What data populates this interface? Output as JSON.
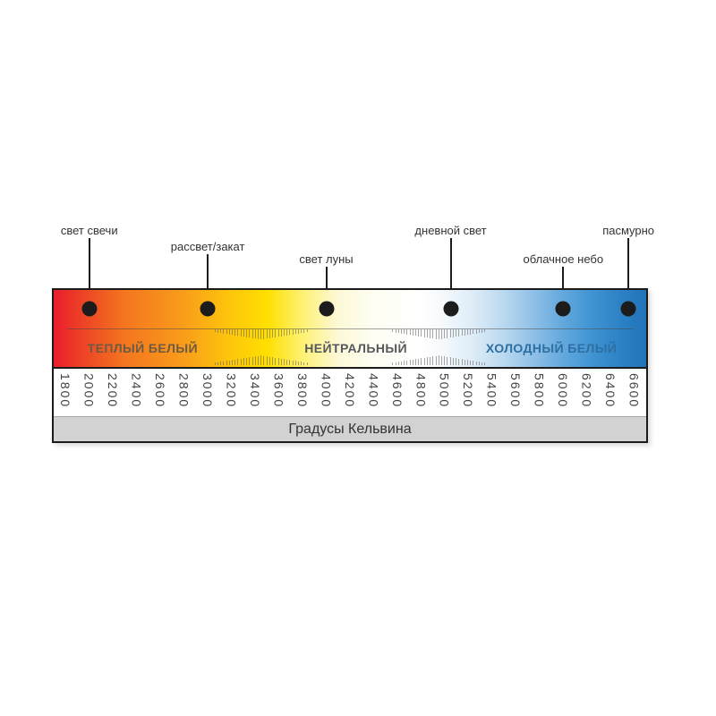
{
  "page": {
    "background": "#ffffff"
  },
  "chart_data": {
    "type": "scale",
    "title": "",
    "axis": {
      "label": "Градусы Кельвина",
      "unit": "K",
      "min": 1800,
      "max": 6600,
      "step": 200,
      "ticks": [
        "1800",
        "2000",
        "2200",
        "2400",
        "2600",
        "2800",
        "3000",
        "3200",
        "3400",
        "3600",
        "3800",
        "4000",
        "4200",
        "4400",
        "4600",
        "4800",
        "5000",
        "5200",
        "5400",
        "5600",
        "5800",
        "6000",
        "6200",
        "6400",
        "6600"
      ]
    },
    "zones": [
      {
        "label": "ТЕПЛЫЙ БЕЛЫЙ",
        "range_kelvin": [
          1800,
          3400
        ],
        "label_center_kelvin": 2450,
        "label_color": "#6e5a43"
      },
      {
        "label": "НЕЙТРАЛЬНЫЙ",
        "range_kelvin": [
          3400,
          5000
        ],
        "label_center_kelvin": 4250,
        "label_color": "#55585c"
      },
      {
        "label": "ХОЛОДНЫЙ БЕЛЫЙ",
        "range_kelvin": [
          5000,
          6600
        ],
        "label_center_kelvin": 5900,
        "label_color": "#2d6fa3"
      }
    ],
    "markers": [
      {
        "label": "свет свечи",
        "kelvin": 2000,
        "label_level": "high"
      },
      {
        "label": "рассвет/закат",
        "kelvin": 3000,
        "label_level": "mid"
      },
      {
        "label": "свет луны",
        "kelvin": 4000,
        "label_level": "low"
      },
      {
        "label": "дневной свет",
        "kelvin": 5050,
        "label_level": "high"
      },
      {
        "label": "облачное небо",
        "kelvin": 6000,
        "label_level": "low"
      },
      {
        "label": "пасмурно",
        "kelvin": 6550,
        "label_level": "high"
      }
    ],
    "transition_ticks_kelvin": [
      3450,
      4950
    ],
    "colors": {
      "border": "#1b1b1b",
      "footer_bg": "#d2d2d2",
      "tick_text": "#414141",
      "marker_text": "#333333",
      "dot": "#1c1c1c"
    },
    "gradient_stops": [
      {
        "pos": 0,
        "color": "#ea1c2d"
      },
      {
        "pos": 4,
        "color": "#ec3c26"
      },
      {
        "pos": 12,
        "color": "#f4761f"
      },
      {
        "pos": 22,
        "color": "#f99d1a"
      },
      {
        "pos": 30,
        "color": "#fec70b"
      },
      {
        "pos": 36,
        "color": "#ffdf00"
      },
      {
        "pos": 42,
        "color": "#fef173"
      },
      {
        "pos": 48,
        "color": "#fdf9d8"
      },
      {
        "pos": 54,
        "color": "#fefef2"
      },
      {
        "pos": 62,
        "color": "#ffffff"
      },
      {
        "pos": 66,
        "color": "#f4f9fd"
      },
      {
        "pos": 71,
        "color": "#dcebf7"
      },
      {
        "pos": 76,
        "color": "#b9d8ef"
      },
      {
        "pos": 81,
        "color": "#8fc0e7"
      },
      {
        "pos": 86,
        "color": "#62a8dd"
      },
      {
        "pos": 91,
        "color": "#3f93d2"
      },
      {
        "pos": 96,
        "color": "#2b80c4"
      },
      {
        "pos": 100,
        "color": "#2373b8"
      }
    ]
  }
}
